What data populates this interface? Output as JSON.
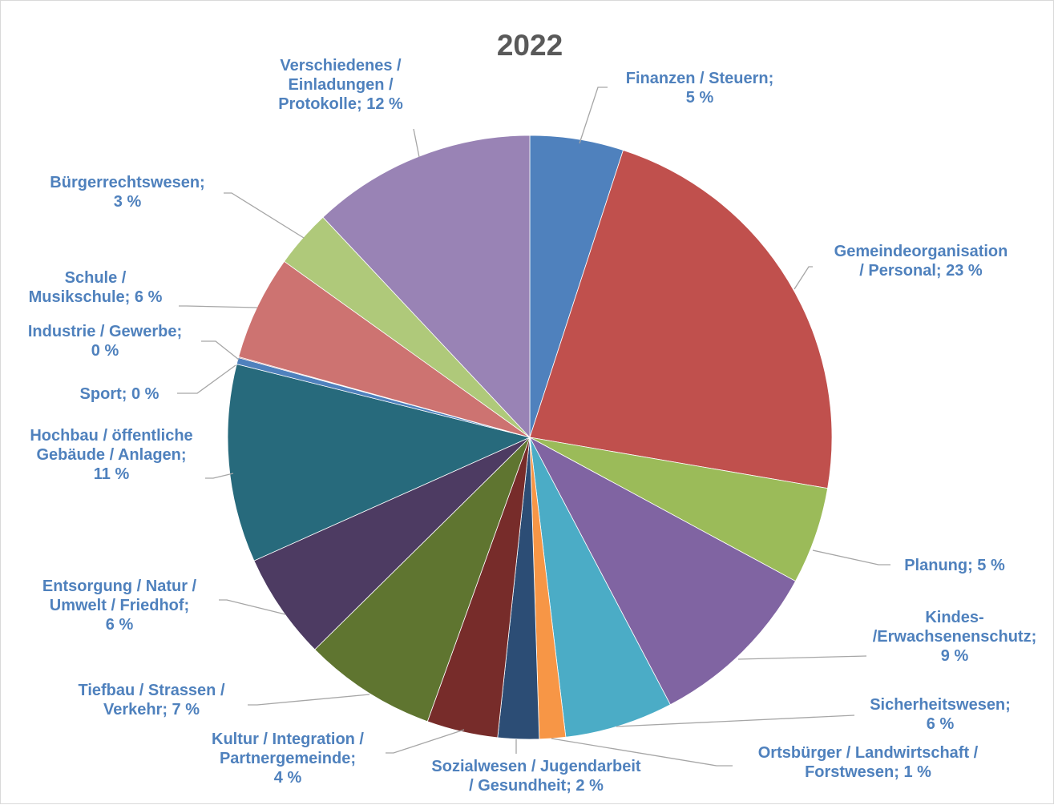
{
  "chart_data": {
    "type": "pie",
    "title": "2022",
    "start_angle_deg": 0,
    "direction": "clockwise",
    "slices": [
      {
        "label_lines": [
          "Finanzen / Steuern;",
          "5 %"
        ],
        "value": 5.0,
        "color": "#4f81bd"
      },
      {
        "label_lines": [
          "Gemeindeorganisation",
          "/ Personal; 23 %"
        ],
        "value": 22.7,
        "color": "#c0504d"
      },
      {
        "label_lines": [
          "Planung; 5 %"
        ],
        "value": 5.2,
        "color": "#9bbb59"
      },
      {
        "label_lines": [
          "Kindes-",
          "/Erwachsenenschutz;",
          "9 %"
        ],
        "value": 9.4,
        "color": "#8064a2"
      },
      {
        "label_lines": [
          "Sicherheitswesen;",
          "6 %"
        ],
        "value": 5.8,
        "color": "#4bacc6"
      },
      {
        "label_lines": [
          "Ortsbürger / Landwirtschaft /",
          "Forstwesen; 1 %"
        ],
        "value": 1.4,
        "color": "#f79646"
      },
      {
        "label_lines": [
          "Sozialwesen / Jugendarbeit",
          "/ Gesundheit; 2 %"
        ],
        "value": 2.2,
        "color": "#2c4d75"
      },
      {
        "label_lines": [
          "Kultur / Integration /",
          "Partnergemeinde;",
          "4 %"
        ],
        "value": 3.8,
        "color": "#772c2a"
      },
      {
        "label_lines": [
          "Tiefbau / Strassen /",
          "Verkehr; 7 %"
        ],
        "value": 7.1,
        "color": "#5f7530"
      },
      {
        "label_lines": [
          "Entsorgung / Natur /",
          "Umwelt / Friedhof;",
          "6 %"
        ],
        "value": 5.7,
        "color": "#4d3b62"
      },
      {
        "label_lines": [
          "Hochbau / öffentliche",
          "Gebäude / Anlagen;",
          "11 %"
        ],
        "value": 10.6,
        "color": "#276a7c"
      },
      {
        "label_lines": [
          "Sport; 0 %"
        ],
        "value": 0.35,
        "color": "#4f81bd"
      },
      {
        "label_lines": [
          "Industrie / Gewerbe;",
          "0 %"
        ],
        "value": 0.05,
        "color": "#c0504d"
      },
      {
        "label_lines": [
          "Schule /",
          "Musikschule; 6 %"
        ],
        "value": 5.6,
        "color": "#cd7371"
      },
      {
        "label_lines": [
          "Bürgerrechtswesen;",
          "3 %"
        ],
        "value": 3.1,
        "color": "#afc97a"
      },
      {
        "label_lines": [
          "Verschiedenes /",
          "Einladungen /",
          "Protokolle; 12 %"
        ],
        "value": 12.0,
        "color": "#9983b5"
      }
    ]
  }
}
